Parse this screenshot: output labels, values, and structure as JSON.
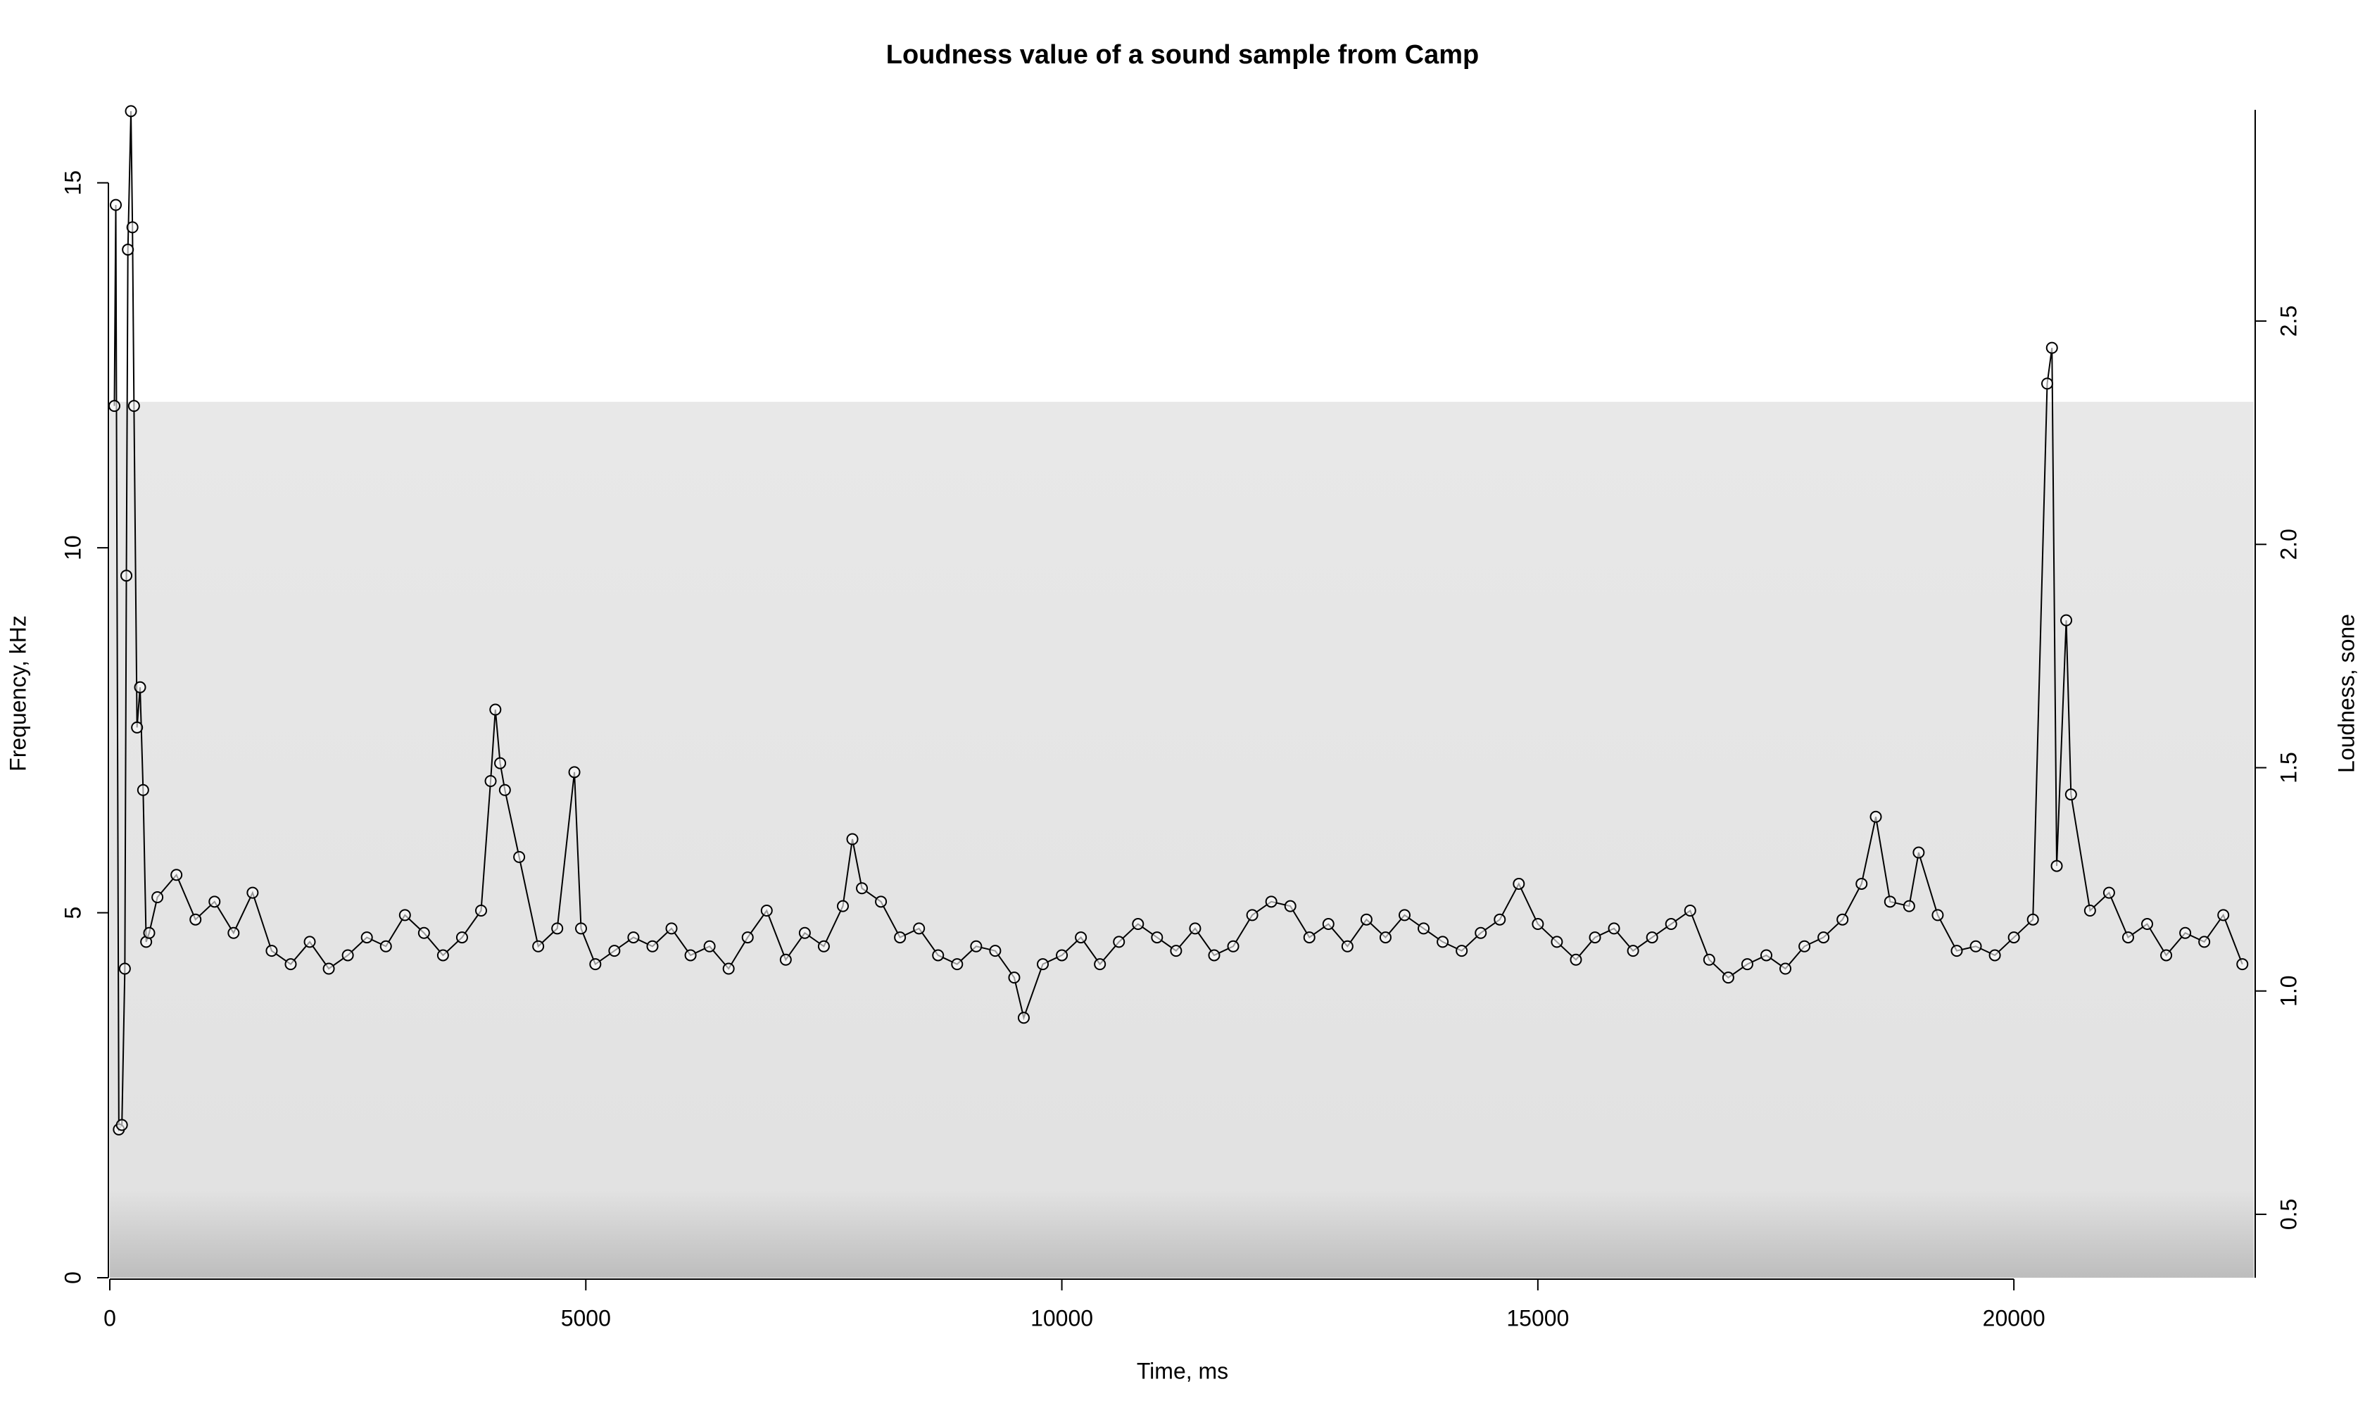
{
  "chart_data": {
    "type": "line",
    "title": "Loudness value of a sound sample from Camp",
    "x_label": "Time, ms",
    "y_label": "Frequency, kHz",
    "y2_label": "Loudness, sone",
    "xlim": [
      0,
      22520
    ],
    "xticks": [
      0,
      5000,
      10000,
      15000,
      20000
    ],
    "ylim": [
      0,
      16
    ],
    "yticks": [
      0,
      5,
      10,
      15
    ],
    "y2lim": [
      0.358,
      2.973
    ],
    "y2ticks": [
      0.5,
      {
        "value": 1,
        "label": "1.0"
      },
      1.5,
      {
        "value": 2,
        "label": "2.0"
      },
      2.5
    ],
    "spectrogram_top": 12,
    "series": [
      {
        "name": "Loudness",
        "color": "#000000",
        "axis": "y2",
        "x": [
          48,
          63,
          95,
          127,
          158,
          174,
          190,
          222,
          238,
          254,
          286,
          318,
          350,
          382,
          414,
          500,
          700,
          900,
          1100,
          1300,
          1500,
          1700,
          1900,
          2100,
          2300,
          2500,
          2700,
          2900,
          3100,
          3300,
          3500,
          3700,
          3900,
          4000,
          4050,
          4100,
          4150,
          4300,
          4500,
          4700,
          4880,
          4950,
          5100,
          5300,
          5500,
          5700,
          5900,
          6100,
          6300,
          6500,
          6700,
          6900,
          7100,
          7300,
          7500,
          7700,
          7800,
          7900,
          8100,
          8300,
          8500,
          8700,
          8900,
          9100,
          9300,
          9500,
          9600,
          9800,
          10000,
          10200,
          10400,
          10600,
          10800,
          11000,
          11200,
          11400,
          11600,
          11800,
          12000,
          12200,
          12400,
          12600,
          12800,
          13000,
          13200,
          13400,
          13600,
          13800,
          14000,
          14200,
          14400,
          14600,
          14800,
          15000,
          15200,
          15400,
          15600,
          15800,
          16000,
          16200,
          16400,
          16600,
          16800,
          17000,
          17200,
          17400,
          17600,
          17800,
          18000,
          18200,
          18400,
          18550,
          18700,
          18900,
          19000,
          19200,
          19400,
          19600,
          19800,
          20000,
          20200,
          20350,
          20400,
          20450,
          20550,
          20600,
          20800,
          21000,
          21200,
          21400,
          21600,
          21800,
          22000,
          22200,
          22400
        ],
        "values": [
          2.31,
          2.76,
          0.69,
          0.7,
          1.05,
          1.93,
          2.66,
          2.97,
          2.71,
          2.31,
          1.59,
          1.68,
          1.45,
          1.11,
          1.13,
          1.21,
          1.26,
          1.16,
          1.2,
          1.13,
          1.22,
          1.09,
          1.06,
          1.11,
          1.05,
          1.08,
          1.12,
          1.1,
          1.17,
          1.13,
          1.08,
          1.12,
          1.18,
          1.47,
          1.63,
          1.51,
          1.45,
          1.3,
          1.1,
          1.14,
          1.49,
          1.14,
          1.06,
          1.09,
          1.12,
          1.1,
          1.14,
          1.08,
          1.1,
          1.05,
          1.12,
          1.18,
          1.07,
          1.13,
          1.1,
          1.19,
          1.34,
          1.23,
          1.2,
          1.12,
          1.14,
          1.08,
          1.06,
          1.1,
          1.09,
          1.03,
          0.94,
          1.06,
          1.08,
          1.12,
          1.06,
          1.11,
          1.15,
          1.12,
          1.09,
          1.14,
          1.08,
          1.1,
          1.17,
          1.2,
          1.19,
          1.12,
          1.15,
          1.1,
          1.16,
          1.12,
          1.17,
          1.14,
          1.11,
          1.09,
          1.13,
          1.16,
          1.24,
          1.15,
          1.11,
          1.07,
          1.12,
          1.14,
          1.09,
          1.12,
          1.15,
          1.18,
          1.07,
          1.03,
          1.06,
          1.08,
          1.05,
          1.1,
          1.12,
          1.16,
          1.24,
          1.39,
          1.2,
          1.19,
          1.31,
          1.17,
          1.09,
          1.1,
          1.08,
          1.12,
          1.16,
          2.36,
          2.44,
          1.28,
          1.83,
          1.44,
          1.18,
          1.22,
          1.12,
          1.15,
          1.08,
          1.13,
          1.11,
          1.17,
          1.06
        ]
      }
    ]
  }
}
